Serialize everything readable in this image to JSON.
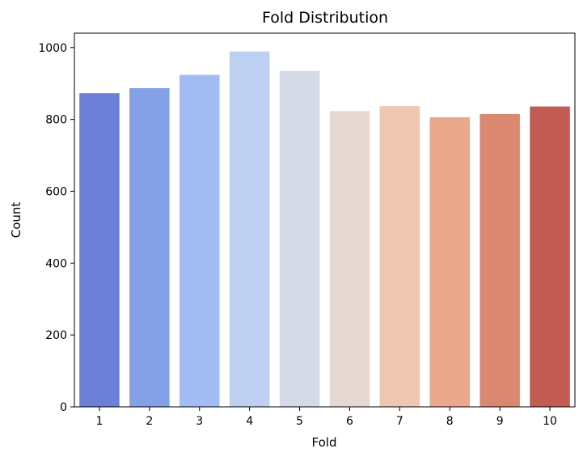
{
  "chart_data": {
    "type": "bar",
    "title": "Fold Distribution",
    "xlabel": "Fold",
    "ylabel": "Count",
    "categories": [
      "1",
      "2",
      "3",
      "4",
      "5",
      "6",
      "7",
      "8",
      "9",
      "10"
    ],
    "values": [
      873,
      887,
      924,
      989,
      935,
      823,
      837,
      806,
      815,
      836
    ],
    "colors": [
      "#6b80d6",
      "#84a0e6",
      "#a3bdf4",
      "#bdd0f2",
      "#d4dae6",
      "#e5d8d1",
      "#eec6b2",
      "#e9a78c",
      "#db8871",
      "#c25c52"
    ],
    "ylim": [
      0,
      1040
    ],
    "yticks": [
      0,
      200,
      400,
      600,
      800,
      1000
    ],
    "grid": false,
    "legend": "none"
  }
}
